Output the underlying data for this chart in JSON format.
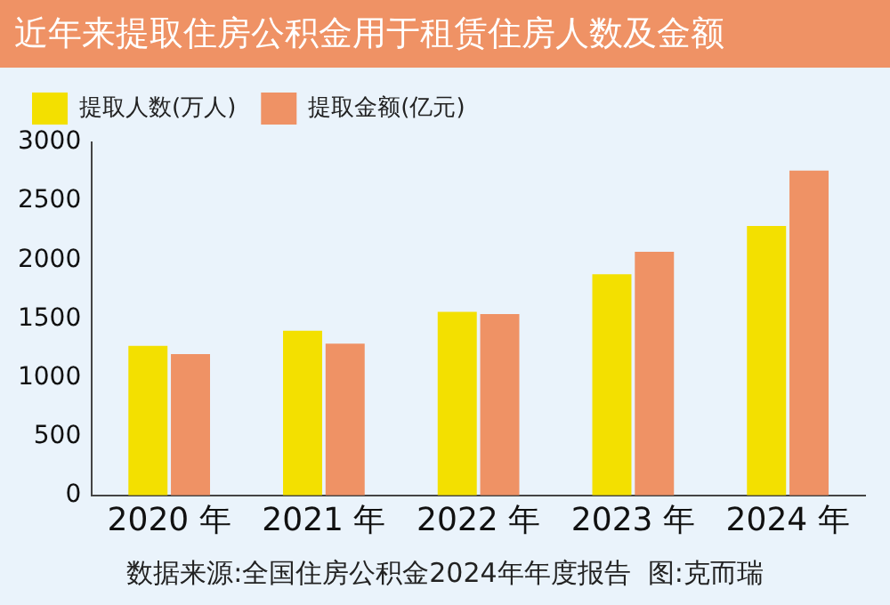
{
  "chart_data": {
    "type": "bar",
    "title": "近年来提取住房公积金用于租赁住房人数及金额",
    "categories": [
      "2020 年",
      "2021 年",
      "2022 年",
      "2023 年",
      "2024 年"
    ],
    "series": [
      {
        "name": "提取人数(万人)",
        "color": "#f3e000",
        "values": [
          1270,
          1400,
          1560,
          1880,
          2290
        ]
      },
      {
        "name": "提取金额(亿元)",
        "color": "#ef9265",
        "values": [
          1200,
          1290,
          1540,
          2070,
          2760
        ]
      }
    ],
    "ylim": [
      0,
      3000
    ],
    "yticks": [
      0,
      500,
      1000,
      1500,
      2000,
      2500,
      3000
    ],
    "grid": false,
    "legend": "top left",
    "annotations": [
      "数据来源:全国住房公积金2024年年度报告  图:克而瑞"
    ]
  }
}
